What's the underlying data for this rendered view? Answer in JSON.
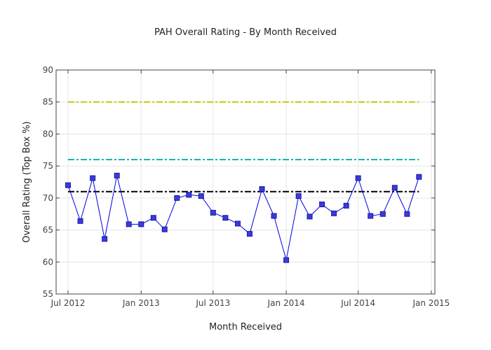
{
  "chart_data": {
    "type": "line",
    "title": "PAH Overall Rating - By Month Received",
    "xlabel": "Month Received",
    "ylabel": "Overall Rating (Top Box %)",
    "xlim": [
      "2012-06-01",
      "2015-01-10"
    ],
    "ylim": [
      55,
      90
    ],
    "x_ticks": [
      {
        "date": "2012-07-01",
        "label": "Jul 2012"
      },
      {
        "date": "2013-01-01",
        "label": "Jan 2013"
      },
      {
        "date": "2013-07-01",
        "label": "Jul 2013"
      },
      {
        "date": "2014-01-01",
        "label": "Jan 2014"
      },
      {
        "date": "2014-07-01",
        "label": "Jul 2014"
      },
      {
        "date": "2015-01-01",
        "label": "Jan 2015"
      }
    ],
    "y_ticks": [
      55,
      60,
      65,
      70,
      75,
      80,
      85,
      90
    ],
    "grid": true,
    "legend": "none",
    "series": [
      {
        "color": "#0000e6",
        "marker": "square",
        "x": [
          "2012-07-01",
          "2012-08-01",
          "2012-09-01",
          "2012-10-01",
          "2012-11-01",
          "2012-12-01",
          "2013-01-01",
          "2013-02-01",
          "2013-03-01",
          "2013-04-01",
          "2013-05-01",
          "2013-06-01",
          "2013-07-01",
          "2013-08-01",
          "2013-09-01",
          "2013-10-01",
          "2013-11-01",
          "2013-12-01",
          "2014-01-01",
          "2014-02-01",
          "2014-03-01",
          "2014-04-01",
          "2014-05-01",
          "2014-06-01",
          "2014-07-01",
          "2014-08-01",
          "2014-09-01",
          "2014-10-01",
          "2014-11-01",
          "2014-12-01"
        ],
        "y": [
          72.0,
          66.4,
          73.1,
          63.6,
          73.5,
          65.9,
          65.9,
          66.9,
          65.1,
          70.0,
          70.5,
          70.3,
          67.7,
          66.9,
          66.0,
          64.4,
          71.4,
          67.2,
          60.3,
          70.3,
          67.1,
          69.0,
          67.6,
          68.8,
          73.1,
          67.2,
          67.5,
          71.6,
          67.5,
          73.3
        ]
      }
    ],
    "reference_lines": [
      {
        "y": 85,
        "color": "#c8c800",
        "dash": "dashdot"
      },
      {
        "y": 76,
        "color": "#14b4b4",
        "dash": "dashdot"
      },
      {
        "y": 71,
        "color": "#000000",
        "dash": "dashdot"
      }
    ]
  }
}
